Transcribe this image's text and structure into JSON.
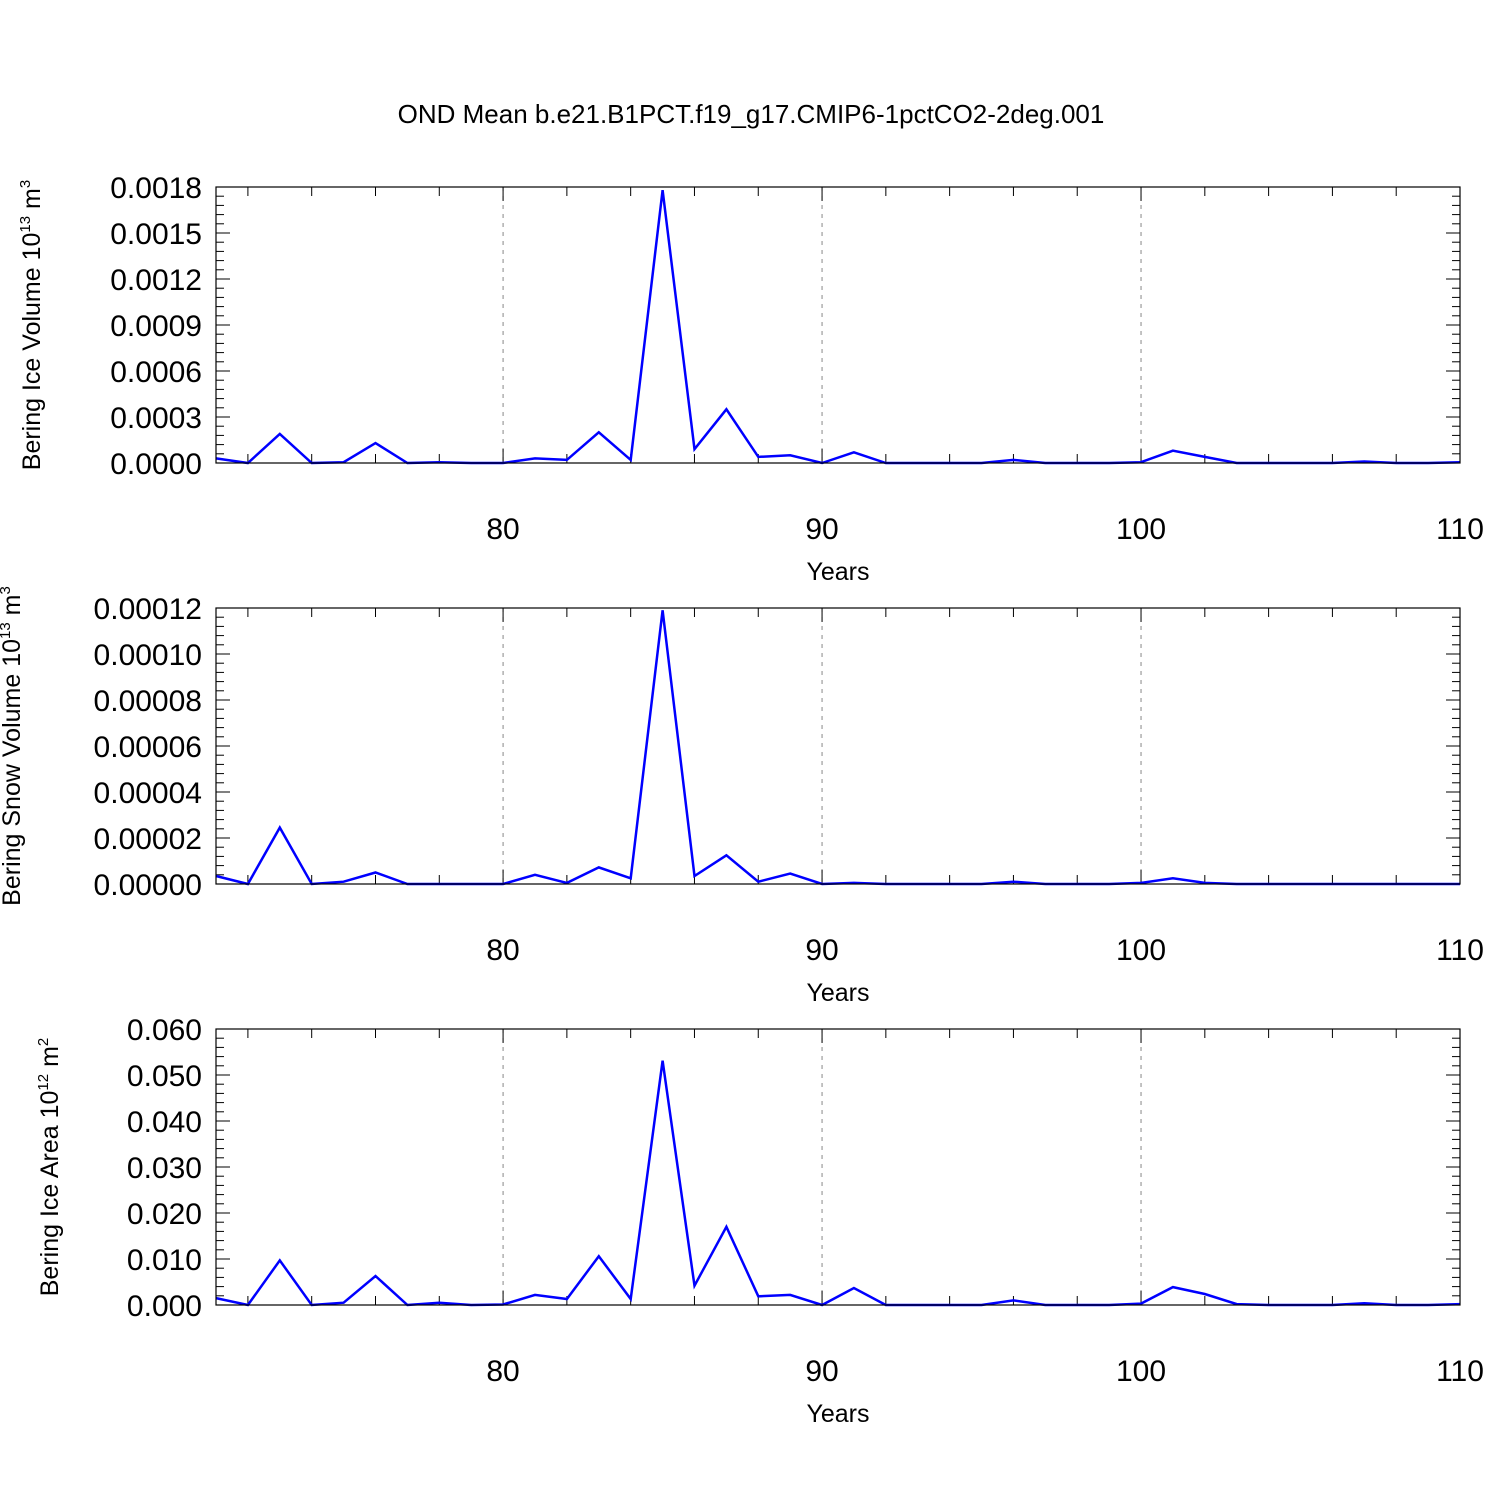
{
  "title": "OND Mean b.e21.B1PCT.f19_g17.CMIP6-1pctCO2-2deg.001",
  "chart_data": [
    {
      "type": "line",
      "ylabel": {
        "text": "Bering Ice Volume 10",
        "sup": "13",
        "unit": "m",
        "unit_sup": "3"
      },
      "xlabel": "Years",
      "xlim": [
        71,
        110
      ],
      "x_ticks": [
        80,
        90,
        100,
        110
      ],
      "x_tick_labels": [
        "80",
        "90",
        "100",
        "110"
      ],
      "ylim": [
        0,
        0.0018
      ],
      "y_ticks": [
        0,
        0.0003,
        0.0006,
        0.0009,
        0.0012,
        0.0015,
        0.0018
      ],
      "y_tick_labels": [
        "0.0000",
        "0.0003",
        "0.0006",
        "0.0009",
        "0.0012",
        "0.0015",
        "0.0018"
      ],
      "grid": "vertical dashed at major x ticks",
      "series": [
        {
          "color": "#0000ff",
          "x": [
            71,
            72,
            73,
            74,
            75,
            76,
            77,
            78,
            79,
            80,
            81,
            82,
            83,
            84,
            85,
            86,
            87,
            88,
            89,
            90,
            91,
            92,
            93,
            94,
            95,
            96,
            97,
            98,
            99,
            100,
            101,
            102,
            103,
            104,
            105,
            106,
            107,
            108,
            109,
            110
          ],
          "values": [
            3e-05,
            0.0,
            0.00019,
            0.0,
            5e-06,
            0.00013,
            0.0,
            5e-06,
            0.0,
            0.0,
            3e-05,
            2e-05,
            0.0002,
            2e-05,
            0.00178,
            9e-05,
            0.00035,
            4e-05,
            5e-05,
            0.0,
            7e-05,
            0.0,
            0.0,
            0.0,
            0.0,
            2e-05,
            0.0,
            0.0,
            0.0,
            5e-06,
            8e-05,
            4e-05,
            0.0,
            0.0,
            0.0,
            0.0,
            1e-05,
            0.0,
            0.0,
            5e-06
          ]
        }
      ]
    },
    {
      "type": "line",
      "ylabel": {
        "text": "Bering Snow Volume 10",
        "sup": "13",
        "unit": "m",
        "unit_sup": "3"
      },
      "xlabel": "Years",
      "xlim": [
        71,
        110
      ],
      "x_ticks": [
        80,
        90,
        100,
        110
      ],
      "x_tick_labels": [
        "80",
        "90",
        "100",
        "110"
      ],
      "ylim": [
        0,
        0.00012
      ],
      "y_ticks": [
        0,
        2e-05,
        4e-05,
        6e-05,
        8e-05,
        0.0001,
        0.00012
      ],
      "y_tick_labels": [
        "0.00000",
        "0.00002",
        "0.00004",
        "0.00006",
        "0.00008",
        "0.00010",
        "0.00012"
      ],
      "grid": "vertical dashed at major x ticks",
      "series": [
        {
          "color": "#0000ff",
          "x": [
            71,
            72,
            73,
            74,
            75,
            76,
            77,
            78,
            79,
            80,
            81,
            82,
            83,
            84,
            85,
            86,
            87,
            88,
            89,
            90,
            91,
            92,
            93,
            94,
            95,
            96,
            97,
            98,
            99,
            100,
            101,
            102,
            103,
            104,
            105,
            106,
            107,
            108,
            109,
            110
          ],
          "values": [
            3.5e-06,
            0.0,
            2.45e-05,
            0.0,
            1e-06,
            5e-06,
            0.0,
            0.0,
            0.0,
            0.0,
            4e-06,
            5e-07,
            7.2e-06,
            2.5e-06,
            0.000119,
            3.5e-06,
            1.25e-05,
            1e-06,
            4.5e-06,
            0.0,
            5e-07,
            0.0,
            0.0,
            0.0,
            0.0,
            1e-06,
            0.0,
            0.0,
            0.0,
            5e-07,
            2.5e-06,
            5e-07,
            0.0,
            0.0,
            0.0,
            0.0,
            0.0,
            0.0,
            0.0,
            0.0
          ]
        }
      ]
    },
    {
      "type": "line",
      "ylabel": {
        "text": "Bering Ice Area 10",
        "sup": "12",
        "unit": "m",
        "unit_sup": "2"
      },
      "xlabel": "Years",
      "xlim": [
        71,
        110
      ],
      "x_ticks": [
        80,
        90,
        100,
        110
      ],
      "x_tick_labels": [
        "80",
        "90",
        "100",
        "110"
      ],
      "ylim": [
        0,
        0.06
      ],
      "y_ticks": [
        0,
        0.01,
        0.02,
        0.03,
        0.04,
        0.05,
        0.06
      ],
      "y_tick_labels": [
        "0.000",
        "0.010",
        "0.020",
        "0.030",
        "0.040",
        "0.050",
        "0.060"
      ],
      "grid": "vertical dashed at major x ticks",
      "series": [
        {
          "color": "#0000ff",
          "x": [
            71,
            72,
            73,
            74,
            75,
            76,
            77,
            78,
            79,
            80,
            81,
            82,
            83,
            84,
            85,
            86,
            87,
            88,
            89,
            90,
            91,
            92,
            93,
            94,
            95,
            96,
            97,
            98,
            99,
            100,
            101,
            102,
            103,
            104,
            105,
            106,
            107,
            108,
            109,
            110
          ],
          "values": [
            0.0015,
            0.0,
            0.0097,
            0.0,
            0.0005,
            0.0063,
            0.0,
            0.0005,
            0.0,
            0.0001,
            0.0022,
            0.0013,
            0.0106,
            0.0013,
            0.0531,
            0.0042,
            0.017,
            0.0019,
            0.0022,
            0.0,
            0.0037,
            0.0,
            0.0,
            0.0,
            0.0,
            0.001,
            0.0,
            0.0,
            0.0,
            0.0003,
            0.0039,
            0.0024,
            0.0002,
            0.0,
            0.0,
            0.0,
            0.0004,
            0.0,
            0.0,
            0.0002
          ]
        }
      ]
    }
  ]
}
